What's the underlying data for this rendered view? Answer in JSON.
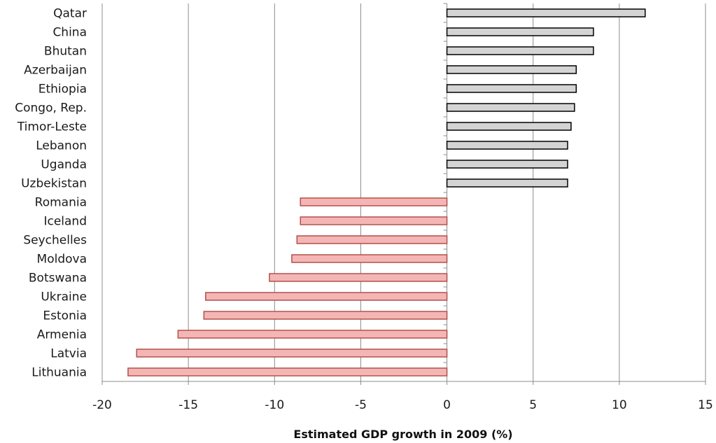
{
  "chart_data": {
    "type": "bar",
    "orientation": "horizontal",
    "categories": [
      "Qatar",
      "China",
      "Bhutan",
      "Azerbaijan",
      "Ethiopia",
      "Congo, Rep.",
      "Timor-Leste",
      "Lebanon",
      "Uganda",
      "Uzbekistan",
      "Romania",
      "Iceland",
      "Seychelles",
      "Moldova",
      "Botswana",
      "Ukraine",
      "Estonia",
      "Armenia",
      "Latvia",
      "Lithuania"
    ],
    "values": [
      11.5,
      8.5,
      8.5,
      7.5,
      7.5,
      7.4,
      7.2,
      7.0,
      7.0,
      7.0,
      -8.5,
      -8.5,
      -8.7,
      -9.0,
      -10.3,
      -14.0,
      -14.1,
      -15.6,
      -18.0,
      -18.5
    ],
    "xlabel": "Estimated GDP growth in 2009 (%)",
    "ylabel": "",
    "xlim": [
      -20,
      15
    ],
    "xticks": [
      "-20",
      "-15",
      "-10",
      "-5",
      "0",
      "5",
      "10",
      "15"
    ],
    "grid": "vertical",
    "colors": {
      "positive_fill": "#d4d4d4",
      "negative_fill": "#f4b6b4",
      "negative_stroke": "#b3504d",
      "positive_stroke": "#000000",
      "grid": "#8c8c8c"
    }
  }
}
